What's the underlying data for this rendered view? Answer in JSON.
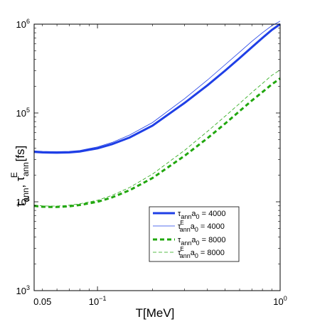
{
  "chart_data": {
    "type": "line",
    "xlabel": "T[MeV]",
    "ylabel": "τ_ann, τ_ann^E [fs]",
    "xscale": "log",
    "yscale": "log",
    "xlim": [
      0.045,
      1.0
    ],
    "ylim": [
      1000,
      1000000
    ],
    "grid": false,
    "legend_position": "lower-right",
    "x_ticks": [
      {
        "value": 0.05,
        "label": "0.05",
        "exp": ""
      },
      {
        "value": 0.1,
        "label": "10",
        "exp": "−1"
      },
      {
        "value": 1.0,
        "label": "10",
        "exp": "0"
      }
    ],
    "y_ticks": [
      {
        "value": 1000,
        "label": "10",
        "exp": "3"
      },
      {
        "value": 10000,
        "label": "10",
        "exp": "4"
      },
      {
        "value": 100000,
        "label": "10",
        "exp": "5"
      },
      {
        "value": 1000000,
        "label": "10",
        "exp": "6"
      }
    ],
    "series": [
      {
        "name": "τ_ann a_0 = 4000",
        "legend_label": {
          "main": "τ",
          "sub": "ann",
          "sup": "",
          "rest": "a",
          "rest_sub": "0",
          "tail": " = 4000"
        },
        "color": "#1f3fe6",
        "width": 3,
        "dash": "",
        "x": [
          0.045,
          0.05,
          0.055,
          0.06,
          0.07,
          0.08,
          0.1,
          0.12,
          0.15,
          0.2,
          0.3,
          0.4,
          0.5,
          0.6,
          0.7,
          0.8,
          0.9,
          1.0
        ],
        "y": [
          36500,
          36000,
          35800,
          35700,
          36000,
          36800,
          40000,
          44500,
          53000,
          72000,
          130000,
          205000,
          300000,
          415000,
          550000,
          700000,
          860000,
          1000000
        ]
      },
      {
        "name": "τ^E_ann a_0 = 4000",
        "legend_label": {
          "main": "τ",
          "sub": "ann",
          "sup": "E",
          "rest": "a",
          "rest_sub": "0",
          "tail": " = 4000"
        },
        "color": "#1f3fe6",
        "width": 0.8,
        "dash": "",
        "x": [
          0.045,
          0.05,
          0.055,
          0.06,
          0.07,
          0.08,
          0.1,
          0.12,
          0.15,
          0.2,
          0.3,
          0.4,
          0.5,
          0.6,
          0.7,
          0.8,
          0.9,
          1.0
        ],
        "y": [
          37500,
          37000,
          36800,
          36700,
          37000,
          37800,
          41500,
          46500,
          56500,
          78000,
          145000,
          235000,
          350000,
          485000,
          640000,
          800000,
          960000,
          1080000
        ]
      },
      {
        "name": "τ_ann a_0 = 8000",
        "legend_label": {
          "main": "τ",
          "sub": "ann",
          "sup": "",
          "rest": "a",
          "rest_sub": "0",
          "tail": " = 8000"
        },
        "color": "#21a70e",
        "width": 3,
        "dash": "6,4",
        "x": [
          0.045,
          0.05,
          0.055,
          0.06,
          0.07,
          0.08,
          0.1,
          0.12,
          0.15,
          0.2,
          0.3,
          0.4,
          0.5,
          0.6,
          0.7,
          0.8,
          0.9,
          1.0
        ],
        "y": [
          9000,
          8800,
          8750,
          8750,
          8900,
          9200,
          10000,
          11200,
          13500,
          18500,
          33000,
          52000,
          76000,
          105000,
          138000,
          172000,
          210000,
          245000
        ]
      },
      {
        "name": "τ^E_ann a_0 = 8000",
        "legend_label": {
          "main": "τ",
          "sub": "ann",
          "sup": "E",
          "rest": "a",
          "rest_sub": "0",
          "tail": " = 8000"
        },
        "color": "#21a70e",
        "width": 0.8,
        "dash": "5,3",
        "x": [
          0.045,
          0.05,
          0.055,
          0.06,
          0.07,
          0.08,
          0.1,
          0.12,
          0.15,
          0.2,
          0.3,
          0.4,
          0.5,
          0.6,
          0.7,
          0.8,
          0.9,
          1.0
        ],
        "y": [
          9200,
          9000,
          8950,
          8950,
          9150,
          9500,
          10400,
          11800,
          14500,
          20500,
          38000,
          62000,
          92000,
          128000,
          170000,
          215000,
          265000,
          305000
        ]
      }
    ]
  }
}
